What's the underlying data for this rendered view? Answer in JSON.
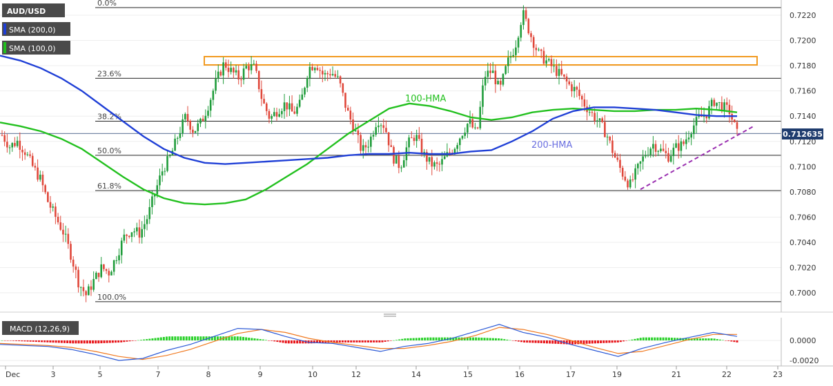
{
  "legend": {
    "symbol": "AUD/USD",
    "sma200": "SMA (200,0)",
    "sma100": "SMA (100,0)",
    "macd": "MACD (12,26,9)"
  },
  "colors": {
    "up": "#1f9c3a",
    "down": "#e0473a",
    "sma200": "#1f3fd6",
    "sma100": "#22c01e",
    "resistance": "#f29a1f",
    "trendline": "#9a2fb0",
    "price_label_bg": "#1f3c6e",
    "macd_line": "#2b59d6",
    "signal_line": "#f0781e",
    "hist_pos": "#2ad12a",
    "hist_neg": "#e8161b",
    "fib_label": "#444444"
  },
  "chart_data": [
    {
      "type": "candlestick",
      "title": "AUD/USD",
      "ylim": [
        0.699,
        0.7226
      ],
      "yticks": [
        "0.7220",
        "0.7200",
        "0.7180",
        "0.7160",
        "0.7140",
        "0.7120",
        "0.7100",
        "0.7080",
        "0.7060",
        "0.7040",
        "0.7020",
        "0.7000"
      ],
      "xtick_labels": [
        "Dec",
        "3",
        "5",
        "7",
        "8",
        "9",
        "10",
        "12",
        "14",
        "15",
        "16",
        "17",
        "19",
        "21",
        "22",
        "23"
      ],
      "last_price": "0.712635",
      "fibonacci": [
        {
          "label": "0.0%",
          "value": 0.7226
        },
        {
          "label": "23.6%",
          "value": 0.717
        },
        {
          "label": "38.2%",
          "value": 0.7136
        },
        {
          "label": "50.0%",
          "value": 0.7109
        },
        {
          "label": "61.8%",
          "value": 0.7081
        },
        {
          "label": "100.0%",
          "value": 0.6993
        }
      ],
      "resistance_zone": [
        0.7181,
        0.7186
      ],
      "annotations": {
        "sma100_label": "100-HMA",
        "sma200_label": "200-HMA"
      },
      "close_path": [
        0.7125,
        0.7116,
        0.712,
        0.7112,
        0.71,
        0.709,
        0.7072,
        0.706,
        0.7048,
        0.703,
        0.7008,
        0.6998,
        0.701,
        0.702,
        0.7016,
        0.703,
        0.7045,
        0.705,
        0.7047,
        0.706,
        0.708,
        0.7098,
        0.7108,
        0.7125,
        0.714,
        0.7128,
        0.7135,
        0.715,
        0.7168,
        0.7182,
        0.7175,
        0.717,
        0.718,
        0.7178,
        0.7152,
        0.7138,
        0.7145,
        0.715,
        0.7142,
        0.715,
        0.7178,
        0.7182,
        0.7172,
        0.7175,
        0.7168,
        0.7145,
        0.713,
        0.7112,
        0.712,
        0.7138,
        0.7132,
        0.7108,
        0.71,
        0.7118,
        0.7125,
        0.711,
        0.7102,
        0.71,
        0.7108,
        0.7115,
        0.7126,
        0.7136,
        0.7125,
        0.7172,
        0.7176,
        0.716,
        0.7182,
        0.7195,
        0.7222,
        0.7205,
        0.719,
        0.7184,
        0.7178,
        0.7172,
        0.7165,
        0.716,
        0.715,
        0.7142,
        0.7135,
        0.7125,
        0.7108,
        0.7095,
        0.7085,
        0.7098,
        0.711,
        0.7118,
        0.7113,
        0.7108,
        0.7115,
        0.7118,
        0.713,
        0.7138,
        0.7142,
        0.7152,
        0.7148,
        0.7144,
        0.7126
      ],
      "sma200_path": [
        0.7188,
        0.7184,
        0.7178,
        0.717,
        0.716,
        0.7148,
        0.7136,
        0.7124,
        0.7114,
        0.7107,
        0.7103,
        0.7102,
        0.7103,
        0.7104,
        0.7105,
        0.7106,
        0.7107,
        0.7109,
        0.711,
        0.711,
        0.7111,
        0.711,
        0.711,
        0.7112,
        0.7113,
        0.712,
        0.7128,
        0.7138,
        0.7144,
        0.7147,
        0.7147,
        0.7146,
        0.7145,
        0.7143,
        0.7141,
        0.714,
        0.714
      ],
      "sma100_path": [
        0.7135,
        0.7132,
        0.7128,
        0.7122,
        0.7114,
        0.7103,
        0.7092,
        0.7082,
        0.7075,
        0.7071,
        0.707,
        0.7071,
        0.7074,
        0.7082,
        0.7092,
        0.7102,
        0.7114,
        0.7126,
        0.7136,
        0.7146,
        0.715,
        0.7148,
        0.7144,
        0.7139,
        0.7137,
        0.7139,
        0.7143,
        0.7145,
        0.7146,
        0.7145,
        0.7144,
        0.7144,
        0.7145,
        0.7145,
        0.7146,
        0.7145,
        0.7143
      ],
      "trendline": [
        {
          "value": 0.7082
        },
        {
          "value": 0.7132
        }
      ]
    },
    {
      "type": "macd",
      "title": "MACD (12,26,9)",
      "ylim": [
        -0.0025,
        0.0015
      ],
      "yticks": [
        "0.0000",
        "-0.0020"
      ],
      "macd_path": [
        -0.0004,
        -0.0005,
        -0.0006,
        -0.0009,
        -0.0014,
        -0.002,
        -0.0018,
        -0.001,
        -0.0004,
        0.0004,
        0.0012,
        0.0011,
        0.0004,
        -0.0002,
        -0.0003,
        -0.0007,
        -0.0011,
        -0.0006,
        -0.0003,
        0.0002,
        0.0009,
        0.0016,
        0.0008,
        0.0003,
        -0.0004,
        -0.001,
        -0.0016,
        -0.0008,
        -0.0002,
        0.0003,
        0.0008,
        0.0004
      ],
      "signal_path": [
        -0.0003,
        -0.0004,
        -0.0005,
        -0.0007,
        -0.0011,
        -0.0016,
        -0.0019,
        -0.0015,
        -0.0009,
        -0.0001,
        0.0007,
        0.0011,
        0.0008,
        0.0002,
        -0.0002,
        -0.0005,
        -0.0008,
        -0.0008,
        -0.0005,
        -0.0001,
        0.0005,
        0.0013,
        0.0011,
        0.0006,
        0.0,
        -0.0007,
        -0.0013,
        -0.0011,
        -0.0005,
        0.0001,
        0.0006,
        0.0006
      ],
      "histogram_path": [
        0.0,
        -0.0001,
        -0.0002,
        -0.0003,
        -0.0003,
        -0.0002,
        0.0001,
        0.0004,
        0.0004,
        0.0004,
        0.0004,
        0.0001,
        -0.0003,
        -0.0003,
        -0.0002,
        -0.0002,
        -0.0002,
        0.0002,
        0.0003,
        0.0003,
        0.0003,
        0.0002,
        -0.0002,
        -0.0003,
        -0.0004,
        -0.0003,
        -0.0002,
        0.0003,
        0.0003,
        0.0002,
        0.0002,
        -0.0002
      ]
    }
  ]
}
